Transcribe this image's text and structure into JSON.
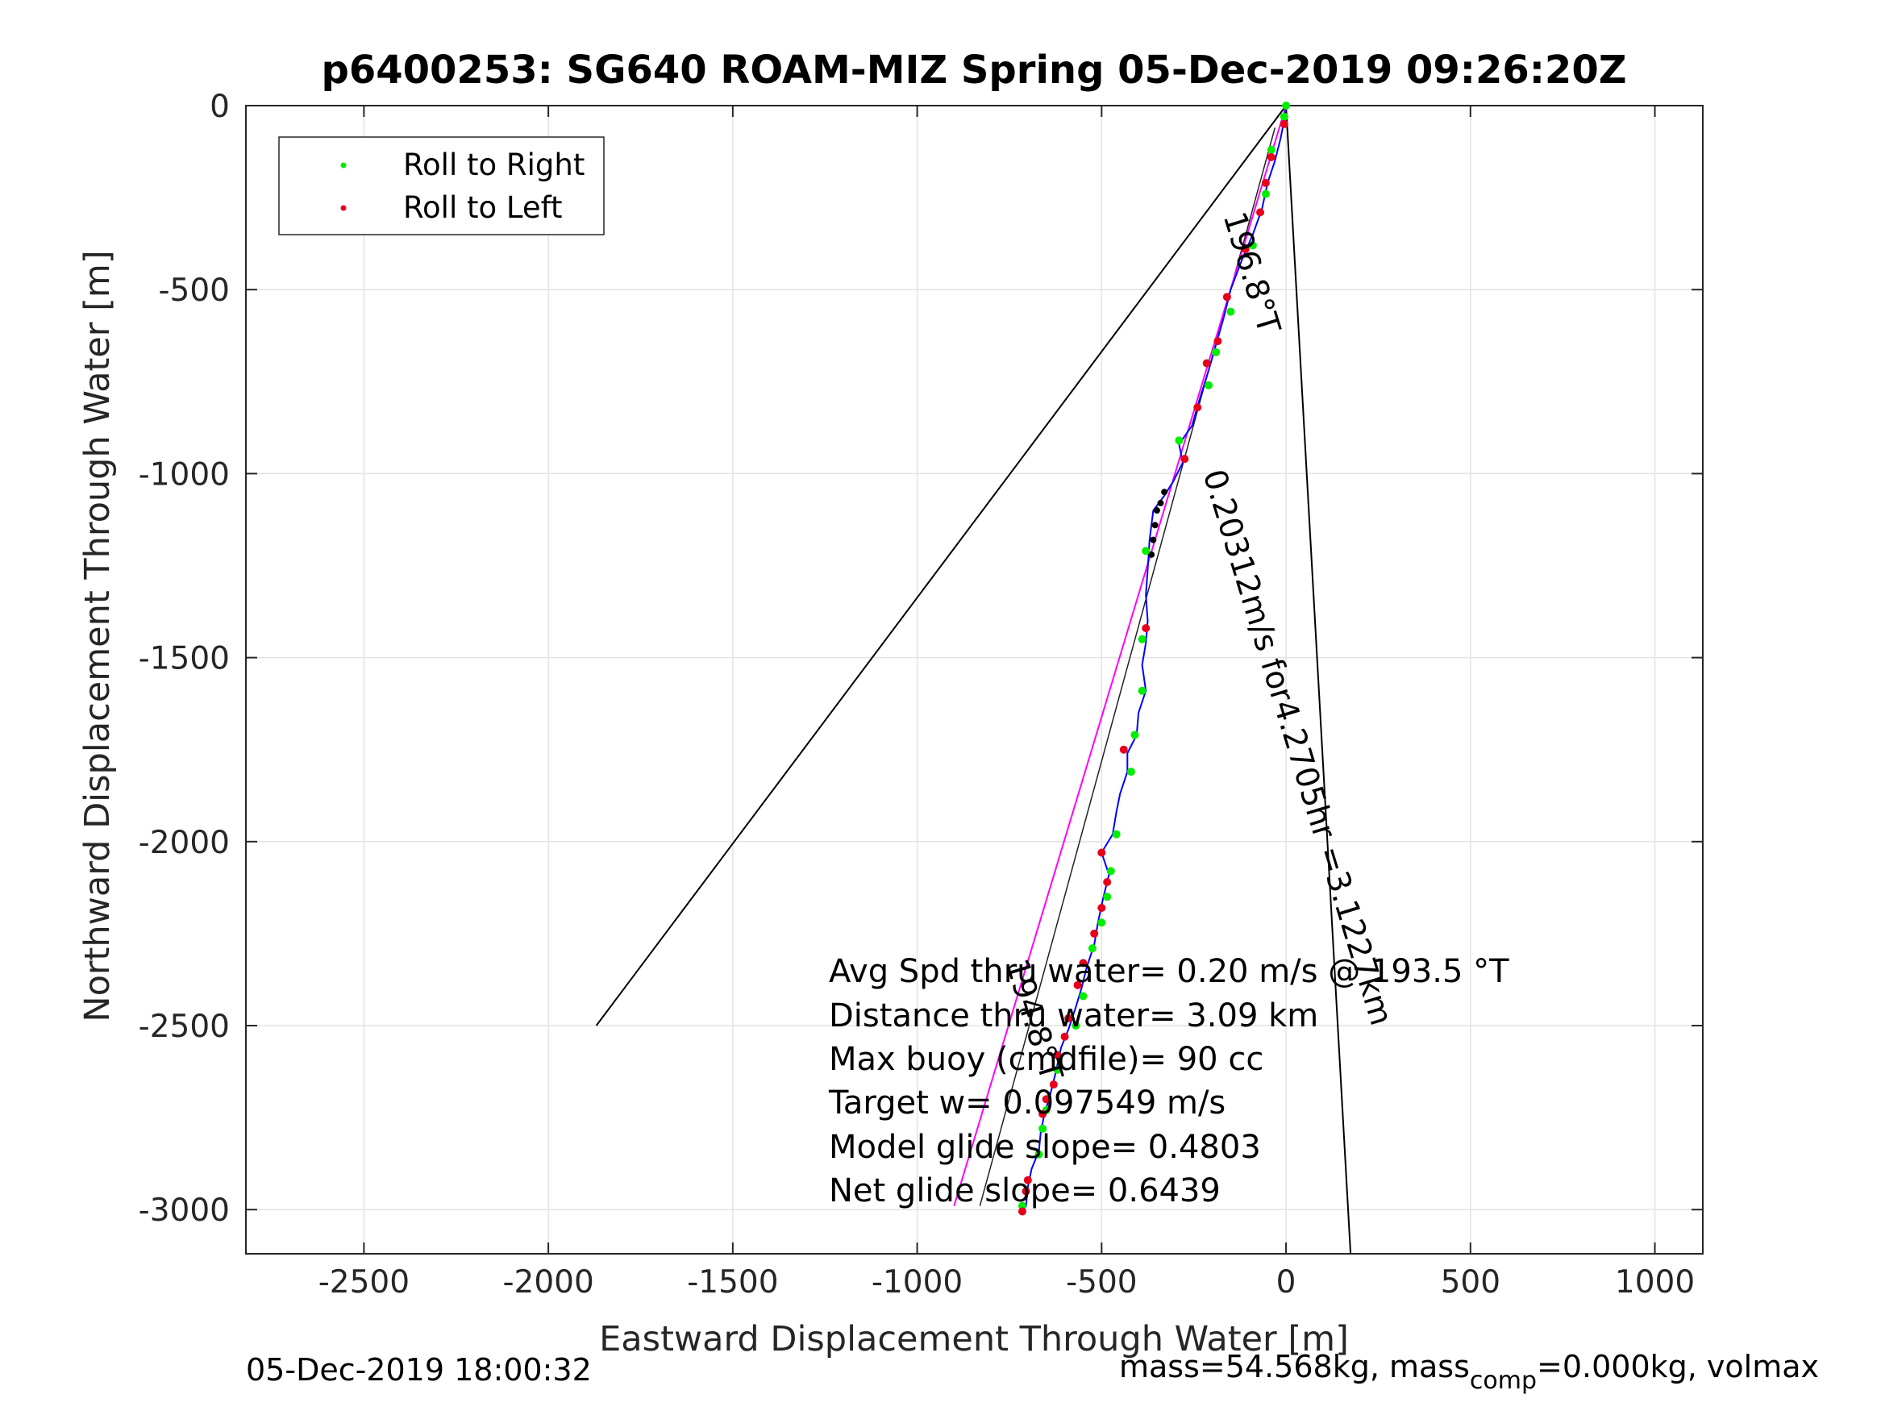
{
  "chart_data": {
    "type": "scatter",
    "title": "p6400253: SG640 ROAM-MIZ Spring 05-Dec-2019 09:26:20Z",
    "xlabel": "Eastward Displacement Through Water [m]",
    "ylabel": "Northward Displacement Through Water [m]",
    "xlim": [
      -2820,
      1130
    ],
    "ylim": [
      -3120,
      0
    ],
    "x_ticks": [
      -2500,
      -2000,
      -1500,
      -1000,
      -500,
      0,
      500,
      1000
    ],
    "y_ticks": [
      0,
      -500,
      -1000,
      -1500,
      -2000,
      -2500,
      -3000
    ],
    "grid": true,
    "legend": {
      "placement": "top-left",
      "entries": [
        "Roll to Right",
        "Roll to Left"
      ]
    },
    "colors": {
      "roll_right": "#00ee00",
      "roll_left": "#e8001a",
      "track": "#0000ff",
      "target_line": "#ff00ff",
      "bounds": "#000000",
      "marker_dark": "#000000"
    },
    "track": [
      [
        0,
        0
      ],
      [
        -5,
        -40
      ],
      [
        -15,
        -90
      ],
      [
        -30,
        -150
      ],
      [
        -50,
        -210
      ],
      [
        -65,
        -280
      ],
      [
        -90,
        -350
      ],
      [
        -120,
        -420
      ],
      [
        -150,
        -500
      ],
      [
        -170,
        -580
      ],
      [
        -190,
        -650
      ],
      [
        -210,
        -720
      ],
      [
        -235,
        -800
      ],
      [
        -255,
        -870
      ],
      [
        -290,
        -920
      ],
      [
        -280,
        -970
      ],
      [
        -305,
        -1020
      ],
      [
        -330,
        -1060
      ],
      [
        -360,
        -1100
      ],
      [
        -370,
        -1180
      ],
      [
        -375,
        -1260
      ],
      [
        -380,
        -1330
      ],
      [
        -375,
        -1400
      ],
      [
        -380,
        -1460
      ],
      [
        -390,
        -1520
      ],
      [
        -380,
        -1590
      ],
      [
        -400,
        -1650
      ],
      [
        -405,
        -1710
      ],
      [
        -430,
        -1760
      ],
      [
        -430,
        -1810
      ],
      [
        -450,
        -1870
      ],
      [
        -460,
        -1920
      ],
      [
        -470,
        -1980
      ],
      [
        -500,
        -2030
      ],
      [
        -480,
        -2090
      ],
      [
        -495,
        -2150
      ],
      [
        -510,
        -2220
      ],
      [
        -520,
        -2280
      ],
      [
        -540,
        -2340
      ],
      [
        -555,
        -2400
      ],
      [
        -570,
        -2450
      ],
      [
        -590,
        -2510
      ],
      [
        -610,
        -2560
      ],
      [
        -625,
        -2630
      ],
      [
        -640,
        -2690
      ],
      [
        -655,
        -2740
      ],
      [
        -665,
        -2790
      ],
      [
        -670,
        -2840
      ],
      [
        -690,
        -2890
      ],
      [
        -700,
        -2940
      ],
      [
        -705,
        -2990
      ],
      [
        -715,
        -3010
      ]
    ],
    "roll_right_points": [
      [
        0,
        0
      ],
      [
        -5,
        -30
      ],
      [
        -40,
        -120
      ],
      [
        -55,
        -240
      ],
      [
        -90,
        -380
      ],
      [
        -150,
        -560
      ],
      [
        -190,
        -670
      ],
      [
        -210,
        -760
      ],
      [
        -290,
        -910
      ],
      [
        -380,
        -1210
      ],
      [
        -390,
        -1450
      ],
      [
        -390,
        -1590
      ],
      [
        -410,
        -1710
      ],
      [
        -420,
        -1810
      ],
      [
        -460,
        -1980
      ],
      [
        -475,
        -2080
      ],
      [
        -485,
        -2150
      ],
      [
        -500,
        -2220
      ],
      [
        -525,
        -2290
      ],
      [
        -550,
        -2420
      ],
      [
        -570,
        -2500
      ],
      [
        -620,
        -2620
      ],
      [
        -650,
        -2730
      ],
      [
        -660,
        -2780
      ],
      [
        -670,
        -2850
      ],
      [
        -715,
        -2990
      ]
    ],
    "roll_left_points": [
      [
        -5,
        -50
      ],
      [
        -40,
        -140
      ],
      [
        -55,
        -210
      ],
      [
        -70,
        -290
      ],
      [
        -110,
        -390
      ],
      [
        -160,
        -520
      ],
      [
        -185,
        -640
      ],
      [
        -215,
        -700
      ],
      [
        -240,
        -820
      ],
      [
        -275,
        -960
      ],
      [
        -380,
        -1420
      ],
      [
        -440,
        -1750
      ],
      [
        -500,
        -2030
      ],
      [
        -485,
        -2110
      ],
      [
        -500,
        -2180
      ],
      [
        -520,
        -2250
      ],
      [
        -550,
        -2330
      ],
      [
        -565,
        -2390
      ],
      [
        -590,
        -2480
      ],
      [
        -600,
        -2530
      ],
      [
        -620,
        -2580
      ],
      [
        -630,
        -2660
      ],
      [
        -650,
        -2700
      ],
      [
        -660,
        -2740
      ],
      [
        -700,
        -2920
      ],
      [
        -705,
        -2950
      ],
      [
        -715,
        -3005
      ]
    ],
    "dark_points": [
      [
        -330,
        -1050
      ],
      [
        -340,
        -1080
      ],
      [
        -350,
        -1100
      ],
      [
        -355,
        -1140
      ],
      [
        -360,
        -1180
      ],
      [
        -365,
        -1220
      ]
    ],
    "bound_line_left": [
      [
        0,
        0
      ],
      [
        -1870,
        -2500
      ]
    ],
    "bound_line_right": [
      [
        0,
        0
      ],
      [
        175,
        -3120
      ]
    ],
    "target_line": [
      [
        0,
        0
      ],
      [
        -900,
        -2990
      ]
    ],
    "target_line_2": [
      [
        -30,
        -60
      ],
      [
        -830,
        -2990
      ]
    ],
    "annotations": [
      {
        "text": "196.8°T",
        "at": [
          -170,
          -300
        ],
        "rotate": 73
      },
      {
        "text": "0.20312m/s for4.2705hr =3.1227km",
        "at": [
          -225,
          -1000
        ],
        "rotate": 73
      },
      {
        "text": "194.8°T",
        "at": [
          -760,
          -2330
        ],
        "rotate": 73
      }
    ],
    "info_lines": [
      "Avg Spd thru water=  0.20 m/s @ 193.5 °T",
      "Distance thru water=  3.09 km",
      "Max buoy (cmdfile)= 90 cc",
      "Target w= 0.097549 m/s",
      "Model glide slope= 0.4803",
      "Net glide slope= 0.6439"
    ]
  },
  "footer": {
    "timestamp": "05-Dec-2019 18:00:32",
    "mass_prefix": "mass=54.568kg, mass",
    "mass_sub": "comp",
    "mass_suffix": "=0.000kg, volmax"
  }
}
